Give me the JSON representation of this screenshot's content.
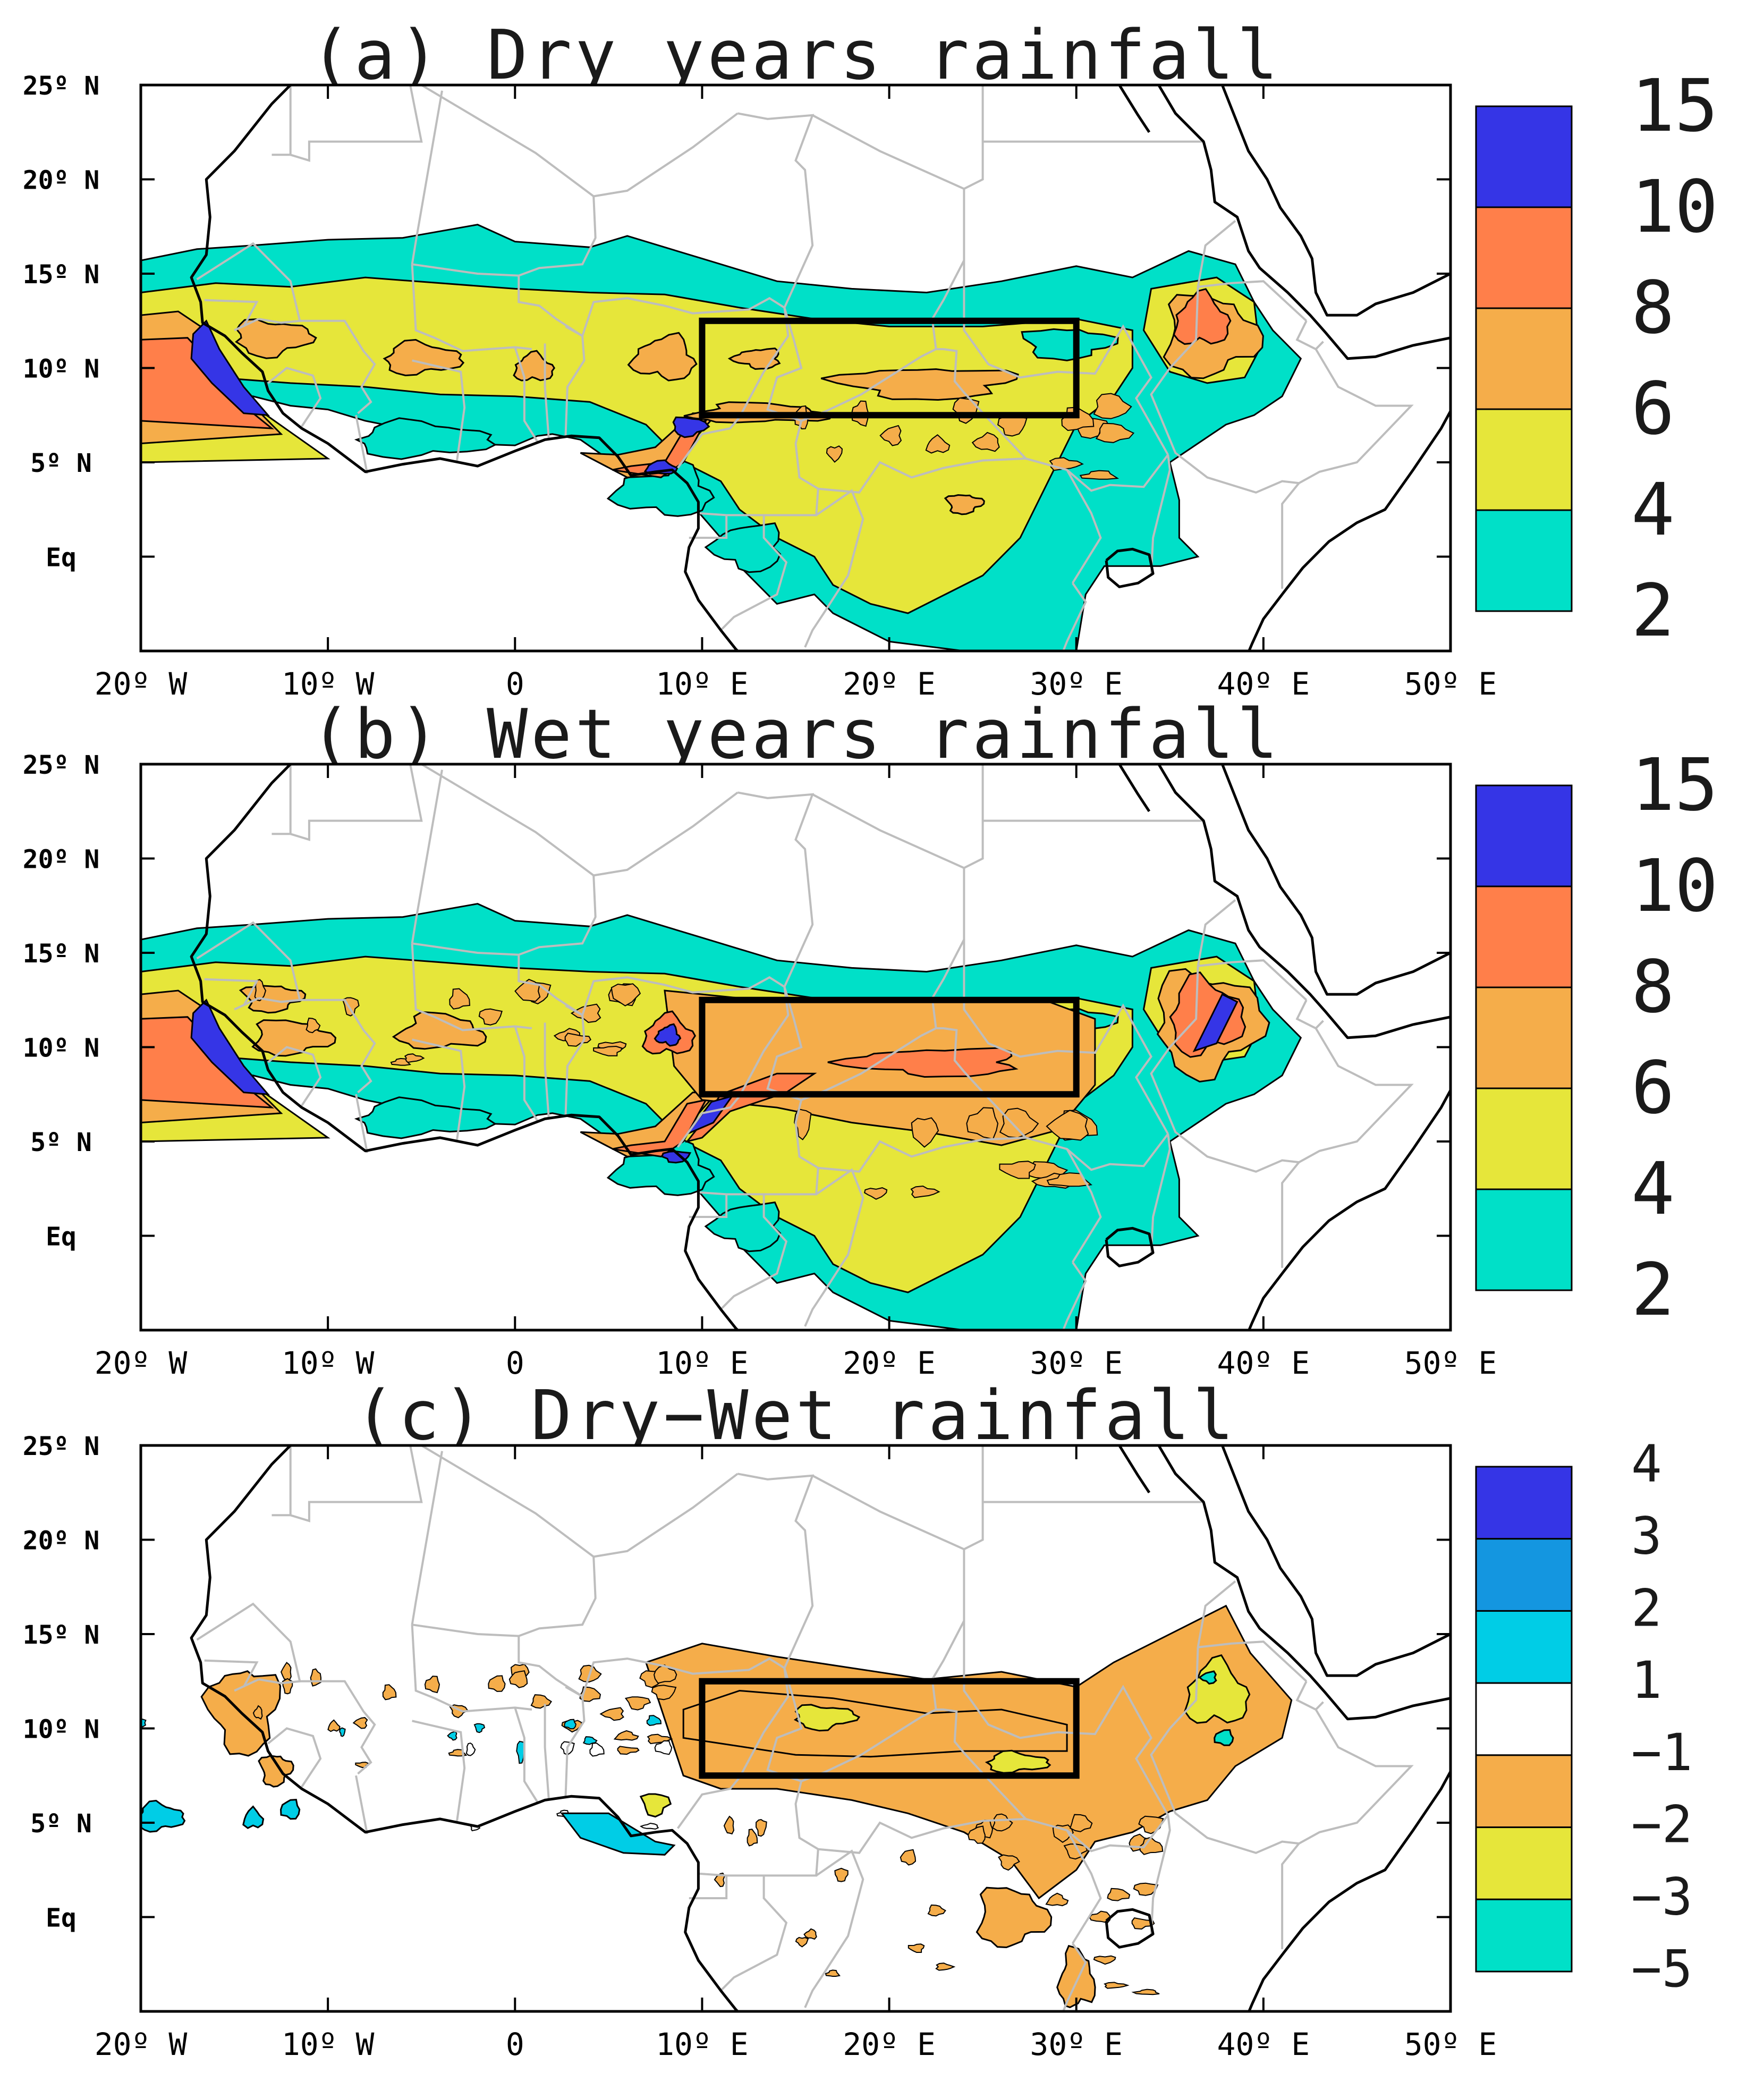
{
  "figure": {
    "x_ticks": [
      "20º W",
      "10º W",
      "0",
      "10º E",
      "20º E",
      "30º E",
      "40º E",
      "50º E"
    ],
    "y_ticks": [
      "25º N",
      "20º N",
      "15º N",
      "10º N",
      "5º N",
      "Eq"
    ],
    "lon_values": [
      -20,
      -10,
      0,
      10,
      20,
      30,
      40,
      50
    ],
    "lat_values": [
      25,
      20,
      15,
      10,
      5,
      0
    ],
    "extent": {
      "lon": [
        -20,
        50
      ],
      "lat": [
        -5,
        25
      ]
    },
    "box_region": {
      "lon": [
        10,
        30
      ],
      "lat": [
        7.5,
        12.5
      ]
    },
    "colors": {
      "coast": "#000000",
      "borders": "#bdbdbd",
      "box": "#000000"
    },
    "panels": [
      {
        "title": "(a) Dry years rainfall",
        "colorbar_levels": [
          "15",
          "10",
          "8",
          "6",
          "4",
          "2"
        ],
        "colors": [
          "#3535e6",
          "#ff7f4a",
          "#f5ad4a",
          "#e6e63a",
          "#00e0c8"
        ],
        "variant": "dry"
      },
      {
        "title": "(b) Wet years rainfall",
        "colorbar_levels": [
          "15",
          "10",
          "8",
          "6",
          "4",
          "2"
        ],
        "colors": [
          "#3535e6",
          "#ff7f4a",
          "#f5ad4a",
          "#e6e63a",
          "#00e0c8"
        ],
        "variant": "wet"
      },
      {
        "title": "(c) Dry−Wet rainfall",
        "colorbar_levels": [
          "4",
          "3",
          "2",
          "1",
          "−1",
          "−2",
          "−3",
          "−5"
        ],
        "colors": [
          "#3535e6",
          "#1496e0",
          "#00cde6",
          "#ffffff",
          "#f5ad4a",
          "#e6e63a",
          "#00e0c8"
        ],
        "variant": "diff"
      }
    ]
  }
}
